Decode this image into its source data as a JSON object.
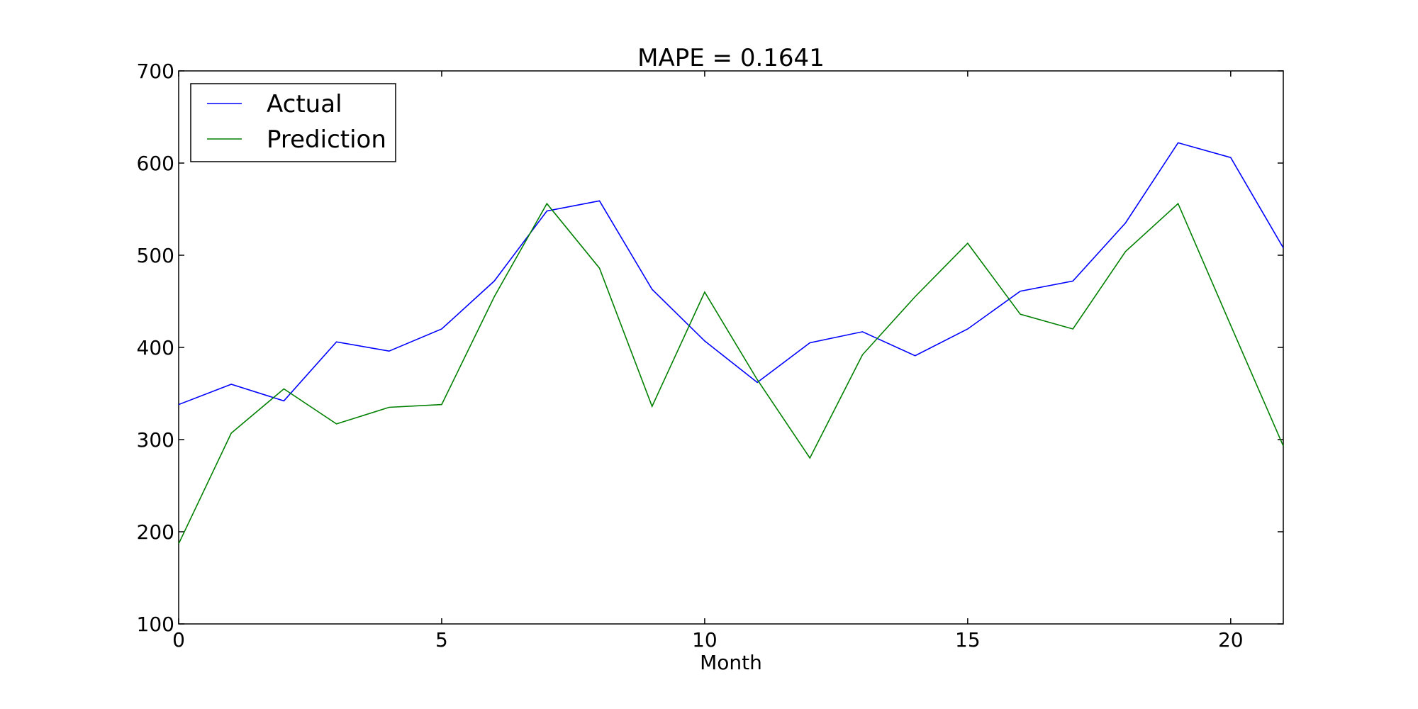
{
  "chart_data": {
    "type": "line",
    "title": "MAPE = 0.1641",
    "xlabel": "Month",
    "ylabel": "",
    "xlim": [
      0,
      21
    ],
    "ylim": [
      100,
      700
    ],
    "x_ticks": [
      0,
      5,
      10,
      15,
      20
    ],
    "y_ticks": [
      100,
      200,
      300,
      400,
      500,
      600,
      700
    ],
    "grid": false,
    "legend_position": "top-left",
    "x": [
      0,
      1,
      2,
      3,
      4,
      5,
      6,
      7,
      8,
      9,
      10,
      11,
      12,
      13,
      14,
      15,
      16,
      17,
      18,
      19,
      20,
      21
    ],
    "series": [
      {
        "name": "Actual",
        "color": "#0000ff",
        "values": [
          338,
          360,
          342,
          406,
          396,
          420,
          472,
          548,
          559,
          463,
          407,
          362,
          405,
          417,
          391,
          420,
          461,
          472,
          535,
          622,
          606,
          508
        ]
      },
      {
        "name": "Prediction",
        "color": "#008000",
        "values": [
          187,
          307,
          355,
          317,
          335,
          338,
          455,
          556,
          486,
          336,
          460,
          365,
          280,
          392,
          455,
          513,
          436,
          420,
          504,
          556,
          424,
          293
        ]
      }
    ]
  }
}
